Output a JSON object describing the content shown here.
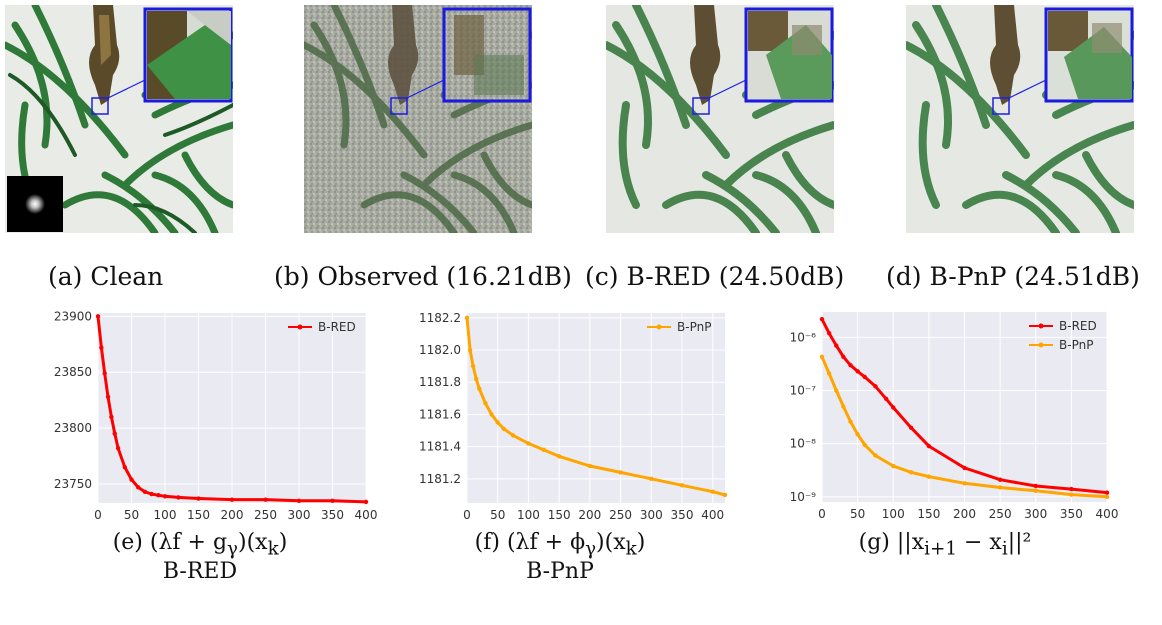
{
  "figure": {
    "panels": [
      {
        "caption": "(a) Clean",
        "kind": "clean"
      },
      {
        "caption": "(b) Observed (16.21dB)",
        "kind": "observed"
      },
      {
        "caption": "(c) B-RED (24.50dB)",
        "kind": "bred"
      },
      {
        "caption": "(d) B-PnP (24.51dB)",
        "kind": "bpnp"
      }
    ],
    "plot_captions": [
      {
        "line1": "(e) (λf + g",
        "sub": "γ",
        "line1b": ")(x",
        "sub2": "k",
        "line1c": ")",
        "line2": "B-RED"
      },
      {
        "line1": "(f) (λf + ϕ",
        "sub": "γ",
        "line1b": ")(x",
        "sub2": "k",
        "line1c": ")",
        "line2": "B-PnP"
      },
      {
        "line1": "(g) ||x",
        "sub": "i+1",
        "line1b": " − x",
        "sub2": "i",
        "line1c": "||²",
        "line2": ""
      }
    ]
  },
  "chart_data": [
    {
      "type": "line",
      "x_ticks": [
        "0",
        "50",
        "100",
        "150",
        "200",
        "250",
        "300",
        "350",
        "400"
      ],
      "y_ticks": [
        "23750",
        "23800",
        "23850",
        "23900"
      ],
      "xlim": [
        0,
        400
      ],
      "ylim": [
        23733,
        23903
      ],
      "legend": "top-right",
      "grid": true,
      "series": [
        {
          "name": "B-RED",
          "color": "#ff0000",
          "x": [
            0,
            5,
            10,
            15,
            20,
            25,
            30,
            40,
            50,
            60,
            70,
            80,
            90,
            100,
            120,
            150,
            200,
            250,
            300,
            350,
            400
          ],
          "y": [
            23900,
            23872,
            23849,
            23828,
            23810,
            23795,
            23782,
            23765,
            23754,
            23747,
            23743,
            23741,
            23740,
            23739,
            23738,
            23737,
            23736,
            23736,
            23735,
            23735,
            23734
          ]
        }
      ]
    },
    {
      "type": "line",
      "x_ticks": [
        "0",
        "50",
        "100",
        "150",
        "200",
        "250",
        "300",
        "350",
        "400"
      ],
      "y_ticks": [
        "1181.2",
        "1181.4",
        "1181.6",
        "1181.8",
        "1182.0",
        "1182.2"
      ],
      "xlim": [
        0,
        420
      ],
      "ylim": [
        1181.05,
        1182.23
      ],
      "legend": "top-right",
      "grid": true,
      "series": [
        {
          "name": "B-PnP",
          "color": "#ffa500",
          "x": [
            0,
            5,
            10,
            15,
            20,
            30,
            40,
            50,
            60,
            75,
            100,
            125,
            150,
            200,
            250,
            300,
            350,
            400,
            420
          ],
          "y": [
            1182.2,
            1182.0,
            1181.9,
            1181.82,
            1181.76,
            1181.67,
            1181.6,
            1181.55,
            1181.51,
            1181.47,
            1181.42,
            1181.38,
            1181.34,
            1181.28,
            1181.24,
            1181.2,
            1181.16,
            1181.12,
            1181.1
          ]
        }
      ]
    },
    {
      "type": "line",
      "x_ticks": [
        "0",
        "50",
        "100",
        "150",
        "200",
        "250",
        "300",
        "350",
        "400"
      ],
      "y_ticks": [
        "10⁻⁹",
        "10⁻⁸",
        "10⁻⁷",
        "10⁻⁶"
      ],
      "xlim": [
        0,
        400
      ],
      "ylim": [
        8e-10,
        3e-06
      ],
      "y_scale": "log",
      "legend": "top-right",
      "grid": true,
      "series": [
        {
          "name": "B-RED",
          "color": "#ff0000",
          "x": [
            0,
            10,
            20,
            30,
            40,
            50,
            60,
            75,
            90,
            100,
            125,
            150,
            200,
            250,
            300,
            350,
            400
          ],
          "y": [
            2.2e-06,
            1.2e-06,
            7e-07,
            4.3e-07,
            3e-07,
            2.3e-07,
            1.8e-07,
            1.2e-07,
            7e-08,
            4.8e-08,
            2e-08,
            9e-09,
            3.5e-09,
            2.1e-09,
            1.6e-09,
            1.4e-09,
            1.2e-09
          ]
        },
        {
          "name": "B-PnP",
          "color": "#ffa500",
          "x": [
            0,
            10,
            20,
            30,
            40,
            50,
            60,
            75,
            100,
            125,
            150,
            200,
            250,
            300,
            350,
            400
          ],
          "y": [
            4.3e-07,
            2.1e-07,
            1e-07,
            5e-08,
            2.6e-08,
            1.5e-08,
            9.5e-09,
            6e-09,
            3.8e-09,
            2.9e-09,
            2.4e-09,
            1.8e-09,
            1.5e-09,
            1.3e-09,
            1.1e-09,
            1e-09
          ]
        }
      ]
    }
  ]
}
